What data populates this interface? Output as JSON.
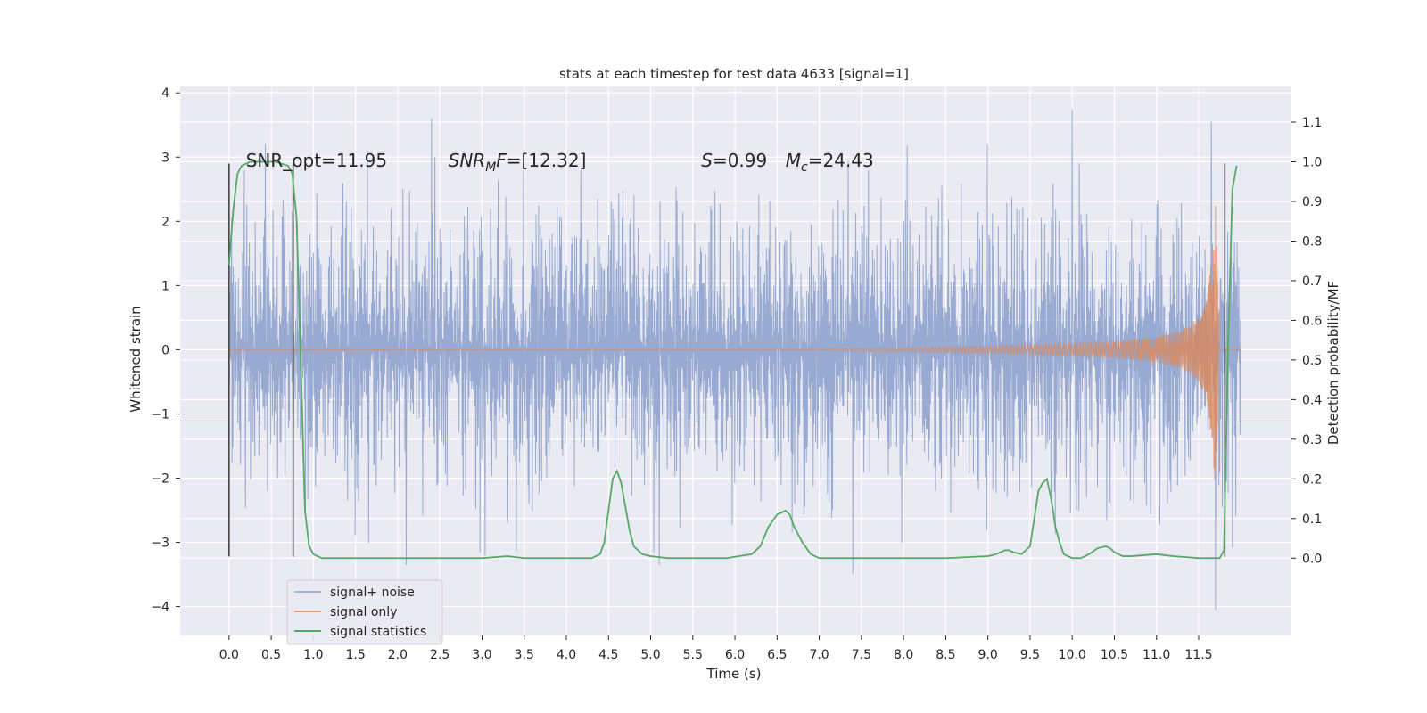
{
  "chart_data": {
    "type": "line",
    "title": "stats at each timestep for test data 4633 [signal=1]",
    "xlabel": "Time (s)",
    "ylabel_left": "Whitened strain",
    "ylabel_right": "Detection probability/MF",
    "xlim": [
      -0.58,
      12.6
    ],
    "ylim_left": [
      -4.45,
      4.1
    ],
    "ylim_right": [
      -0.195,
      1.19
    ],
    "x_ticks": [
      "0.0",
      "0.5",
      "1.0",
      "1.5",
      "2.0",
      "2.5",
      "3.0",
      "3.5",
      "4.0",
      "4.5",
      "5.0",
      "5.5",
      "6.0",
      "6.5",
      "7.0",
      "7.5",
      "8.0",
      "8.5",
      "9.0",
      "9.5",
      "10.0",
      "10.5",
      "11.0",
      "11.5"
    ],
    "y_ticks_left": [
      "4",
      "3",
      "2",
      "1",
      "0",
      "−1",
      "−2",
      "−3",
      "−4"
    ],
    "y_ticks_right": [
      "1.1",
      "1.0",
      "0.9",
      "0.8",
      "0.7",
      "0.6",
      "0.5",
      "0.4",
      "0.3",
      "0.2",
      "0.1",
      "0.0"
    ],
    "grid": true,
    "legend_position": "lower-left",
    "colors": {
      "background": "#eaeaf2",
      "signal_noise": "#8a9fcc",
      "signal_only": "#dd8452",
      "statistics": "#55a868",
      "vline": "#444444"
    },
    "series": [
      {
        "name": "signal+ noise",
        "axis": "left",
        "x_range": [
          0.0,
          12.0
        ],
        "envelope_typical": [
          -2.0,
          2.2
        ],
        "peaks": [
          [
            2.4,
            3.6
          ],
          [
            10.0,
            3.75
          ],
          [
            11.65,
            3.55
          ],
          [
            2.1,
            -3.35
          ],
          [
            11.7,
            -4.05
          ],
          [
            7.4,
            -3.5
          ],
          [
            5.1,
            -3.35
          ]
        ]
      },
      {
        "name": "signal only",
        "axis": "left",
        "x": [
          0.0,
          7.0,
          8.0,
          9.0,
          10.0,
          10.5,
          11.0,
          11.3,
          11.5,
          11.6,
          11.65,
          11.7,
          11.75,
          12.0
        ],
        "amplitude": [
          0.0,
          0.01,
          0.03,
          0.06,
          0.1,
          0.13,
          0.2,
          0.3,
          0.5,
          0.8,
          1.4,
          2.3,
          0.0,
          0.0
        ]
      },
      {
        "name": "signal statistics",
        "axis": "right",
        "x": [
          0.0,
          0.05,
          0.1,
          0.15,
          0.25,
          0.4,
          0.55,
          0.7,
          0.75,
          0.8,
          0.85,
          0.9,
          0.95,
          1.0,
          1.1,
          1.5,
          2.0,
          2.5,
          3.0,
          3.3,
          3.5,
          3.8,
          4.3,
          4.4,
          4.45,
          4.5,
          4.55,
          4.6,
          4.65,
          4.7,
          4.75,
          4.8,
          4.9,
          5.0,
          5.2,
          5.5,
          5.9,
          6.2,
          6.3,
          6.4,
          6.5,
          6.6,
          6.65,
          6.7,
          6.8,
          6.9,
          7.0,
          7.3,
          8.0,
          8.5,
          9.0,
          9.1,
          9.2,
          9.25,
          9.3,
          9.4,
          9.5,
          9.55,
          9.6,
          9.65,
          9.7,
          9.75,
          9.8,
          9.85,
          9.9,
          10.0,
          10.1,
          10.2,
          10.3,
          10.4,
          10.45,
          10.5,
          10.6,
          10.7,
          11.0,
          11.2,
          11.5,
          11.6,
          11.65,
          11.7,
          11.75,
          11.8,
          11.85,
          11.9,
          11.95
        ],
        "y": [
          0.74,
          0.88,
          0.97,
          0.99,
          1.0,
          1.0,
          1.0,
          0.99,
          0.97,
          0.86,
          0.5,
          0.12,
          0.03,
          0.01,
          0.0,
          0.0,
          0.0,
          0.0,
          0.0,
          0.005,
          0.0,
          0.0,
          0.0,
          0.01,
          0.04,
          0.12,
          0.2,
          0.22,
          0.19,
          0.13,
          0.07,
          0.03,
          0.01,
          0.005,
          0.0,
          0.0,
          0.0,
          0.01,
          0.03,
          0.08,
          0.11,
          0.12,
          0.11,
          0.08,
          0.04,
          0.01,
          0.0,
          0.0,
          0.0,
          0.0,
          0.005,
          0.01,
          0.02,
          0.02,
          0.015,
          0.01,
          0.03,
          0.1,
          0.17,
          0.19,
          0.2,
          0.15,
          0.08,
          0.04,
          0.01,
          0.0,
          0.0,
          0.01,
          0.025,
          0.03,
          0.025,
          0.015,
          0.005,
          0.005,
          0.01,
          0.005,
          0.0,
          0.0,
          0.0,
          0.0,
          0.0,
          0.02,
          0.55,
          0.93,
          0.99
        ]
      }
    ],
    "vertical_lines": [
      0.0,
      0.76,
      11.81
    ],
    "annotations": [
      {
        "text": "SNR_opt=11.95",
        "x": 0.2,
        "y": 2.95
      },
      {
        "text_math": {
          "base": "SNR",
          "sub": "M",
          "rest": "F=[12.32]"
        },
        "x": 2.6,
        "y": 2.95
      },
      {
        "text_math": {
          "base": "S",
          "sub": "",
          "rest": "=0.99"
        },
        "x": 5.6,
        "y": 2.95
      },
      {
        "text_math": {
          "base": "M",
          "sub": "c",
          "rest": "=24.43"
        },
        "x": 6.6,
        "y": 2.95
      }
    ]
  }
}
